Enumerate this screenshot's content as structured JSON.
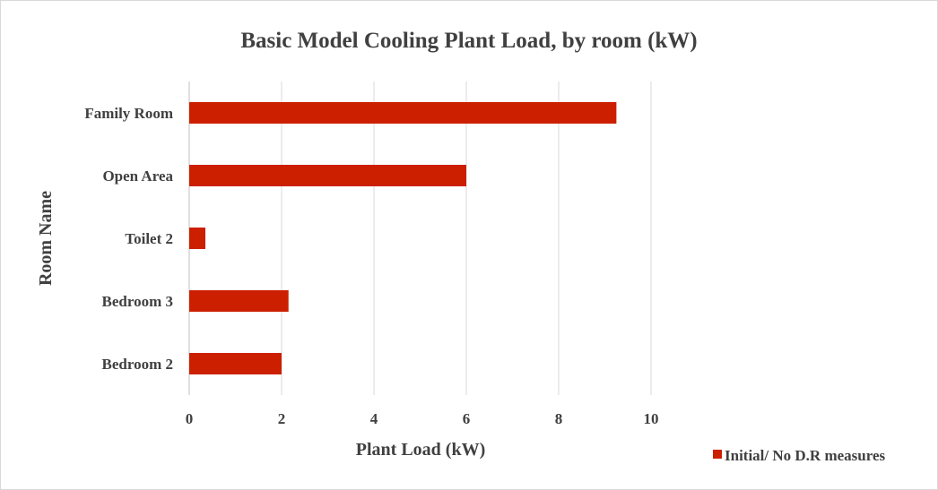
{
  "chart_data": {
    "type": "bar",
    "orientation": "horizontal",
    "title": "Basic Model Cooling Plant Load, by room (kW)",
    "xlabel": "Plant Load (kW)",
    "ylabel": "Room Name",
    "categories": [
      "Family Room",
      "Open Area",
      "Toilet 2",
      "Bedroom 3",
      "Bedroom 2"
    ],
    "series": [
      {
        "name": "Initial/ No D.R measures",
        "values": [
          9.25,
          6.0,
          0.35,
          2.15,
          2.0
        ],
        "color": "#cc1f00"
      }
    ],
    "xlim": [
      0,
      10
    ],
    "xticks": [
      "0",
      "2",
      "4",
      "6",
      "8",
      "10"
    ],
    "grid": true,
    "gridlines": "vertical",
    "legend": "bottom-right"
  }
}
